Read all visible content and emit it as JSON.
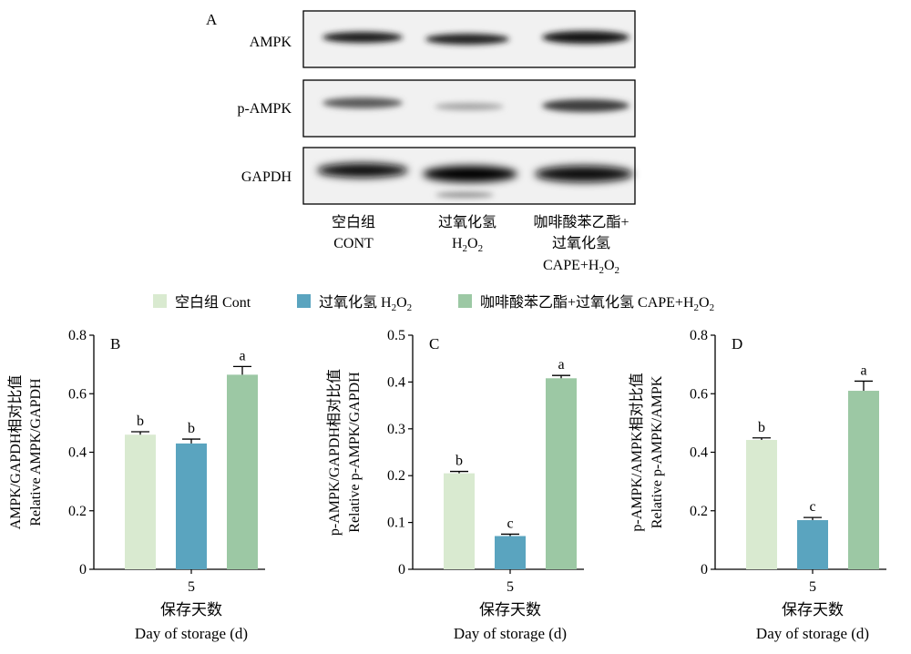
{
  "panel_a": {
    "letter": "A",
    "row_labels": [
      "AMPK",
      "p-AMPK",
      "GAPDH"
    ],
    "lanes": [
      {
        "zh": "空白组",
        "en": "CONT"
      },
      {
        "zh": "过氧化氢",
        "en": "H2O2"
      },
      {
        "zh": "咖啡酸苯乙酯+过氧化氢",
        "zh_line1": "咖啡酸苯乙酯+",
        "zh_line2": "过氧化氢",
        "en": "CAPE+H2O2"
      }
    ]
  },
  "legend": [
    {
      "zh": "空白组",
      "en": "Cont",
      "color": "#d9ead0"
    },
    {
      "zh": "过氧化氢",
      "en": "H2O2",
      "color": "#5aa4bf"
    },
    {
      "zh": "咖啡酸苯乙酯+过氧化氢",
      "en": "CAPE+H2O2",
      "color": "#9cc8a4"
    }
  ],
  "chart_data": [
    {
      "type": "bar",
      "panel": "B",
      "categories": [
        "5"
      ],
      "series": [
        {
          "name": "空白组 Cont",
          "values": [
            0.46
          ],
          "error": [
            0.01
          ],
          "letter": "b"
        },
        {
          "name": "过氧化氢 H2O2",
          "values": [
            0.43
          ],
          "error": [
            0.015
          ],
          "letter": "b"
        },
        {
          "name": "咖啡酸苯乙酯+过氧化氢 CAPE+H2O2",
          "values": [
            0.665
          ],
          "error": [
            0.028
          ],
          "letter": "a"
        }
      ],
      "ylabel_zh": "AMPK/GAPDH相对比值",
      "ylabel_en": "Relative AMPK/GAPDH",
      "xlabel_zh": "保存天数",
      "xlabel_en": "Day of storage (d)",
      "ylim": [
        0,
        0.8
      ],
      "yticks": [
        "0",
        "0.2",
        "0.4",
        "0.6",
        "0.8"
      ]
    },
    {
      "type": "bar",
      "panel": "C",
      "categories": [
        "5"
      ],
      "series": [
        {
          "name": "空白组 Cont",
          "values": [
            0.205
          ],
          "error": [
            0.004
          ],
          "letter": "b"
        },
        {
          "name": "过氧化氢 H2O2",
          "values": [
            0.071
          ],
          "error": [
            0.004
          ],
          "letter": "c"
        },
        {
          "name": "咖啡酸苯乙酯+过氧化氢 CAPE+H2O2",
          "values": [
            0.408
          ],
          "error": [
            0.006
          ],
          "letter": "a"
        }
      ],
      "ylabel_zh": "p-AMPK/GAPDH相对比值",
      "ylabel_en": "Relative p-AMPK/GAPDH",
      "xlabel_zh": "保存天数",
      "xlabel_en": "Day of storage (d)",
      "ylim": [
        0,
        0.5
      ],
      "yticks": [
        "0",
        "0.1",
        "0.2",
        "0.3",
        "0.4",
        "0.5"
      ]
    },
    {
      "type": "bar",
      "panel": "D",
      "categories": [
        "5"
      ],
      "series": [
        {
          "name": "空白组 Cont",
          "values": [
            0.442
          ],
          "error": [
            0.007
          ],
          "letter": "b"
        },
        {
          "name": "过氧化氢 H2O2",
          "values": [
            0.168
          ],
          "error": [
            0.009
          ],
          "letter": "c"
        },
        {
          "name": "咖啡酸苯乙酯+过氧化氢 CAPE+H2O2",
          "values": [
            0.61
          ],
          "error": [
            0.033
          ],
          "letter": "a"
        }
      ],
      "ylabel_zh": "p-AMPK/AMPK相对比值",
      "ylabel_en": "Relative p-AMPK/AMPK",
      "xlabel_zh": "保存天数",
      "xlabel_en": "Day of storage (d)",
      "ylim": [
        0,
        0.8
      ],
      "yticks": [
        "0",
        "0.2",
        "0.4",
        "0.6",
        "0.8"
      ]
    }
  ]
}
